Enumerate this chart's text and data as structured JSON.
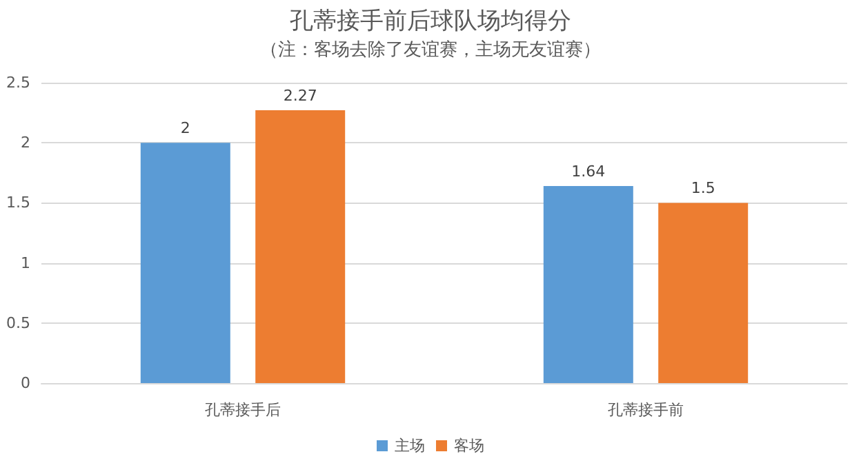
{
  "chart_data": {
    "type": "bar",
    "title": "孔蒂接手前后球队场均得分",
    "subtitle": "（注：客场去除了友谊赛，主场无友谊赛）",
    "categories": [
      "孔蒂接手后",
      "孔蒂接手前"
    ],
    "series": [
      {
        "name": "主场",
        "color": "#5b9bd5",
        "values": [
          2,
          1.64
        ]
      },
      {
        "name": "客场",
        "color": "#ed7d31",
        "values": [
          2.27,
          1.5
        ]
      }
    ],
    "ylim": [
      0,
      2.5
    ],
    "yticks": [
      0,
      0.5,
      1,
      1.5,
      2,
      2.5
    ],
    "grid": "y",
    "legend": "bottom",
    "data_labels": true
  }
}
